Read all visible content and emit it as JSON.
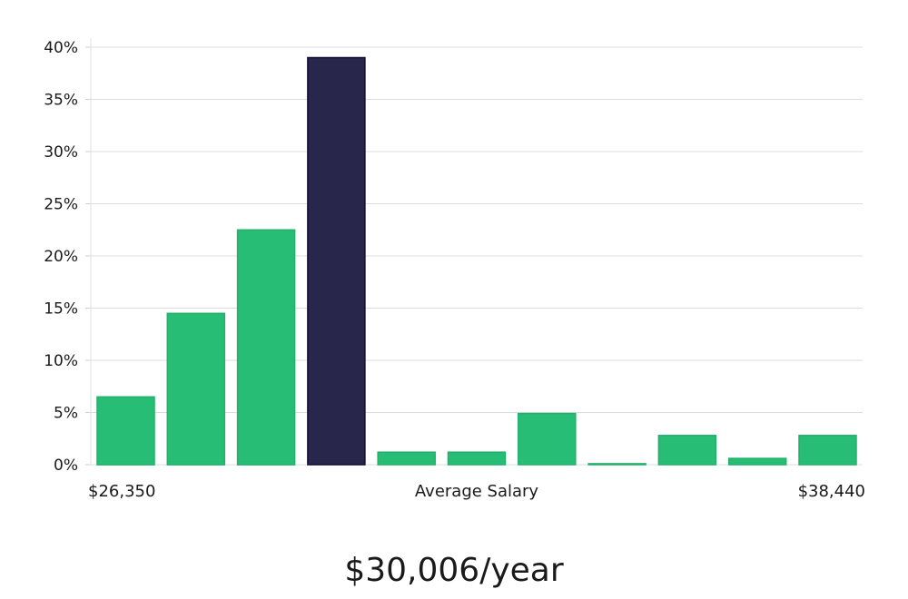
{
  "chart_data": {
    "type": "bar",
    "title": "",
    "xlabel": "Average Salary",
    "ylabel": "",
    "x_min_label": "$26,350",
    "x_max_label": "$38,440",
    "ylim": [
      0,
      40
    ],
    "yticks": [
      0,
      5,
      10,
      15,
      20,
      25,
      30,
      35,
      40
    ],
    "ytick_labels": [
      "0%",
      "5%",
      "10%",
      "15%",
      "20%",
      "25%",
      "30%",
      "35%",
      "40%"
    ],
    "grid": true,
    "values": [
      6.5,
      14.5,
      22.5,
      39.0,
      1.2,
      1.2,
      4.9,
      0.1,
      2.8,
      0.6,
      2.8
    ],
    "highlight_index": 3,
    "bar_color": "#27bd74",
    "highlight_color": "#28264a",
    "highlight_border": "#0f0d33"
  },
  "summary": {
    "salary_text": "$30,006/year"
  }
}
